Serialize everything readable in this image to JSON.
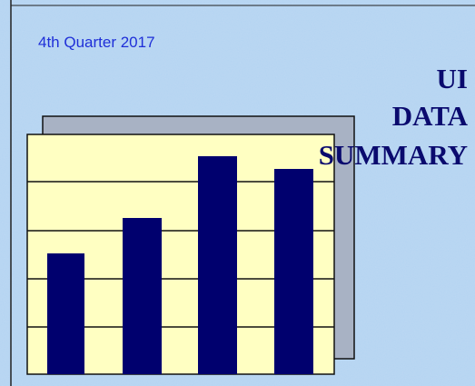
{
  "subtitle": "4th Quarter 2017",
  "title_lines": [
    "UI",
    "DATA",
    "SUMMARY"
  ]
}
